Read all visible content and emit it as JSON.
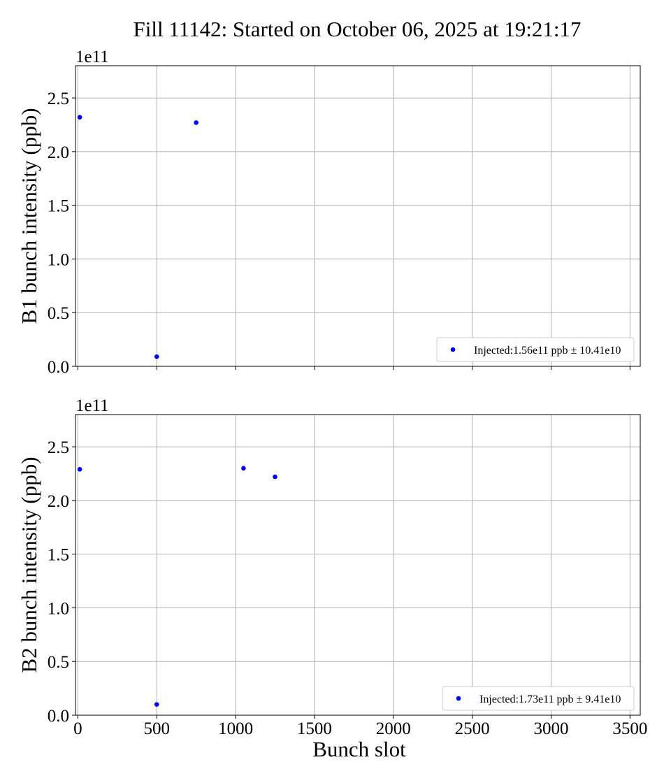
{
  "figure": {
    "title": "Fill 11142: Started on October 06, 2025 at 19:21:17"
  },
  "chart_data": [
    {
      "type": "scatter",
      "title": "",
      "xlabel": "",
      "ylabel": "B1 bunch intensity (ppb)",
      "y_scale_text": "1e11",
      "xlim": [
        -15,
        3565
      ],
      "ylim": [
        0,
        2.8
      ],
      "x_ticks": [
        0,
        500,
        1000,
        1500,
        2000,
        2500,
        3000,
        3500
      ],
      "x_tick_labels_visible": false,
      "y_ticks": [
        0.0,
        0.5,
        1.0,
        1.5,
        2.0,
        2.5
      ],
      "y_tick_labels": [
        "0.0",
        "0.5",
        "1.0",
        "1.5",
        "2.0",
        "2.5"
      ],
      "grid": true,
      "legend_position": "lower-right",
      "color": "#0000ff",
      "series": [
        {
          "name": "Injected:1.56e11 ppb ± 10.41e10",
          "x": [
            12,
            500,
            750
          ],
          "y": [
            2.32,
            0.09,
            2.27
          ]
        }
      ]
    },
    {
      "type": "scatter",
      "title": "",
      "xlabel": "Bunch slot",
      "ylabel": "B2 bunch intensity (ppb)",
      "y_scale_text": "1e11",
      "xlim": [
        -15,
        3565
      ],
      "ylim": [
        0,
        2.8
      ],
      "x_ticks": [
        0,
        500,
        1000,
        1500,
        2000,
        2500,
        3000,
        3500
      ],
      "x_tick_labels": [
        "0",
        "500",
        "1000",
        "1500",
        "2000",
        "2500",
        "3000",
        "3500"
      ],
      "x_tick_labels_visible": true,
      "y_ticks": [
        0.0,
        0.5,
        1.0,
        1.5,
        2.0,
        2.5
      ],
      "y_tick_labels": [
        "0.0",
        "0.5",
        "1.0",
        "1.5",
        "2.0",
        "2.5"
      ],
      "grid": true,
      "legend_position": "lower-right",
      "color": "#0000ff",
      "series": [
        {
          "name": "Injected:1.73e11 ppb ± 9.41e10",
          "x": [
            12,
            500,
            1050,
            1250
          ],
          "y": [
            2.29,
            0.1,
            2.3,
            2.22
          ]
        }
      ]
    }
  ]
}
